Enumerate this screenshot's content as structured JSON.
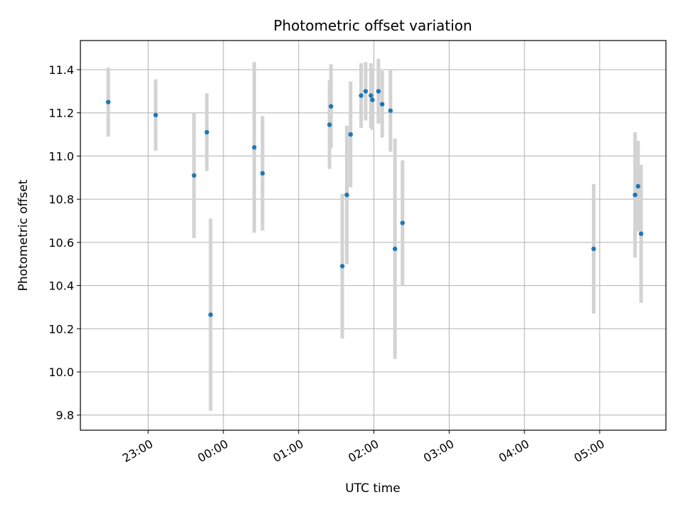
{
  "chart_data": {
    "type": "scatter",
    "title": "Photometric offset variation",
    "xlabel": "UTC time",
    "ylabel": "Photometric offset",
    "x_unit": "hours (UTC clock, values >= 24 are after midnight)",
    "xlim": [
      22.1,
      29.88
    ],
    "ylim": [
      9.73,
      11.535
    ],
    "grid": true,
    "colors": {
      "point": "#1f77b4",
      "errorbar": "#d3d3d3",
      "grid": "#b0b0b0"
    },
    "x_ticks": [
      {
        "value": 23,
        "label": "23:00"
      },
      {
        "value": 24,
        "label": "00:00"
      },
      {
        "value": 25,
        "label": "01:00"
      },
      {
        "value": 26,
        "label": "02:00"
      },
      {
        "value": 27,
        "label": "03:00"
      },
      {
        "value": 28,
        "label": "04:00"
      },
      {
        "value": 29,
        "label": "05:00"
      }
    ],
    "y_ticks": [
      {
        "value": 9.8,
        "label": "9.8"
      },
      {
        "value": 10.0,
        "label": "10.0"
      },
      {
        "value": 10.2,
        "label": "10.2"
      },
      {
        "value": 10.4,
        "label": "10.4"
      },
      {
        "value": 10.6,
        "label": "10.6"
      },
      {
        "value": 10.8,
        "label": "10.8"
      },
      {
        "value": 11.0,
        "label": "11.0"
      },
      {
        "value": 11.2,
        "label": "11.2"
      },
      {
        "value": 11.4,
        "label": "11.4"
      }
    ],
    "points": [
      {
        "x": 22.47,
        "y": 11.25,
        "err": 0.16
      },
      {
        "x": 23.1,
        "y": 11.19,
        "err": 0.165
      },
      {
        "x": 23.61,
        "y": 10.91,
        "err": 0.29
      },
      {
        "x": 23.78,
        "y": 11.11,
        "err": 0.18
      },
      {
        "x": 23.83,
        "y": 10.265,
        "err": 0.445
      },
      {
        "x": 24.41,
        "y": 11.04,
        "err": 0.395
      },
      {
        "x": 24.52,
        "y": 10.92,
        "err": 0.265
      },
      {
        "x": 25.41,
        "y": 11.145,
        "err": 0.205
      },
      {
        "x": 25.43,
        "y": 11.23,
        "err": 0.195
      },
      {
        "x": 25.58,
        "y": 10.49,
        "err": 0.335
      },
      {
        "x": 25.64,
        "y": 10.82,
        "err": 0.32
      },
      {
        "x": 25.69,
        "y": 11.1,
        "err": 0.245
      },
      {
        "x": 25.83,
        "y": 11.28,
        "err": 0.15
      },
      {
        "x": 25.89,
        "y": 11.3,
        "err": 0.135
      },
      {
        "x": 25.96,
        "y": 11.28,
        "err": 0.15
      },
      {
        "x": 25.98,
        "y": 11.26,
        "err": 0.14
      },
      {
        "x": 26.06,
        "y": 11.3,
        "err": 0.15
      },
      {
        "x": 26.11,
        "y": 11.24,
        "err": 0.155
      },
      {
        "x": 26.22,
        "y": 11.21,
        "err": 0.19
      },
      {
        "x": 26.28,
        "y": 10.57,
        "err": 0.51
      },
      {
        "x": 26.38,
        "y": 10.69,
        "err": 0.29
      },
      {
        "x": 28.92,
        "y": 10.57,
        "err": 0.3
      },
      {
        "x": 29.47,
        "y": 10.82,
        "err": 0.29
      },
      {
        "x": 29.51,
        "y": 10.86,
        "err": 0.21
      },
      {
        "x": 29.55,
        "y": 10.64,
        "err": 0.32
      }
    ]
  }
}
